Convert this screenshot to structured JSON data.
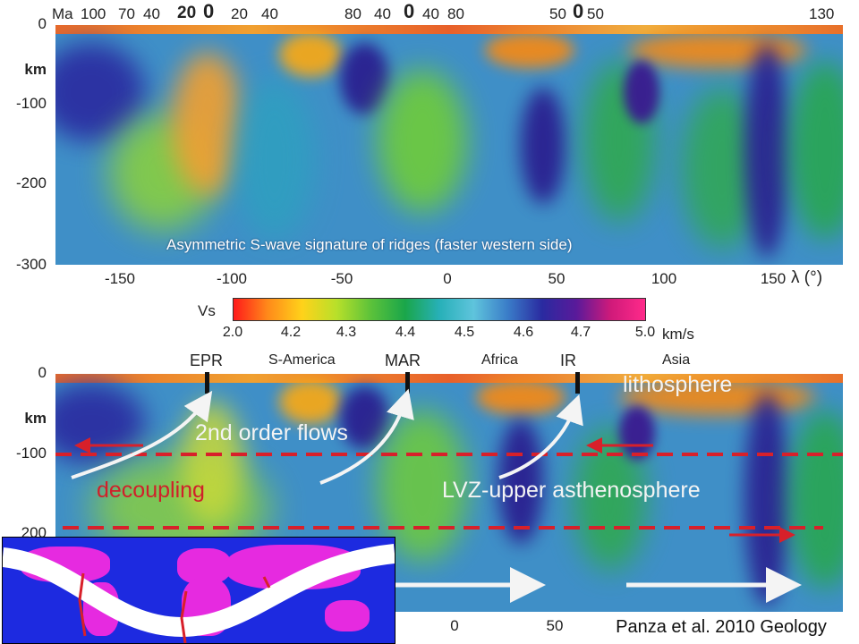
{
  "top_panel": {
    "caption": "Asymmetric S-wave signature of ridges (faster western side)",
    "y_unit": "km",
    "y_ticks": [
      "0",
      "-100",
      "-200",
      "-300"
    ],
    "x_ticks": [
      "-150",
      "-100",
      "-50",
      "0",
      "50",
      "100",
      "150"
    ],
    "x_axis_label": "λ (°)",
    "age_label": "Ma",
    "age_ticks": [
      "100",
      "70",
      "40",
      "20",
      "0",
      "20",
      "40",
      "80",
      "40",
      "0",
      "40",
      "80",
      "50",
      "0",
      "50",
      "130"
    ]
  },
  "colorbar": {
    "label": "Vs",
    "ticks": [
      "2.0",
      "4.2",
      "4.3",
      "4.4",
      "4.5",
      "4.6",
      "4.7",
      "5.0"
    ],
    "unit": "km/s",
    "colors": [
      "#ff1a1a",
      "#ff8a1a",
      "#ffd21a",
      "#b8e02a",
      "#5cc23a",
      "#1aa64a",
      "#27b0b8",
      "#5fc4dc",
      "#3a7cc8",
      "#2a2aa0",
      "#5a1a9a",
      "#d01a7a",
      "#ff2a8a"
    ]
  },
  "bottom_panel": {
    "y_unit": "km",
    "y_ticks": [
      "0",
      "-100",
      "200"
    ],
    "x_ticks": [
      "0",
      "50"
    ],
    "ridges": [
      "EPR",
      "MAR",
      "IR"
    ],
    "regions": [
      "S-America",
      "Africa",
      "Asia"
    ],
    "labels": {
      "lithosphere": "lithosphere",
      "flows": "2nd order flows",
      "decoupling": "decoupling",
      "lvz": "LVZ-upper asthenosphere"
    }
  },
  "credit": "Panza et al. 2010 Geology",
  "colors": {
    "section_base": "#3f8fc7",
    "dashed_line": "#d8202a",
    "arrow": "#f4f4f4",
    "map_ocean": "#1d2ae0",
    "map_land": "#e62ae0"
  }
}
